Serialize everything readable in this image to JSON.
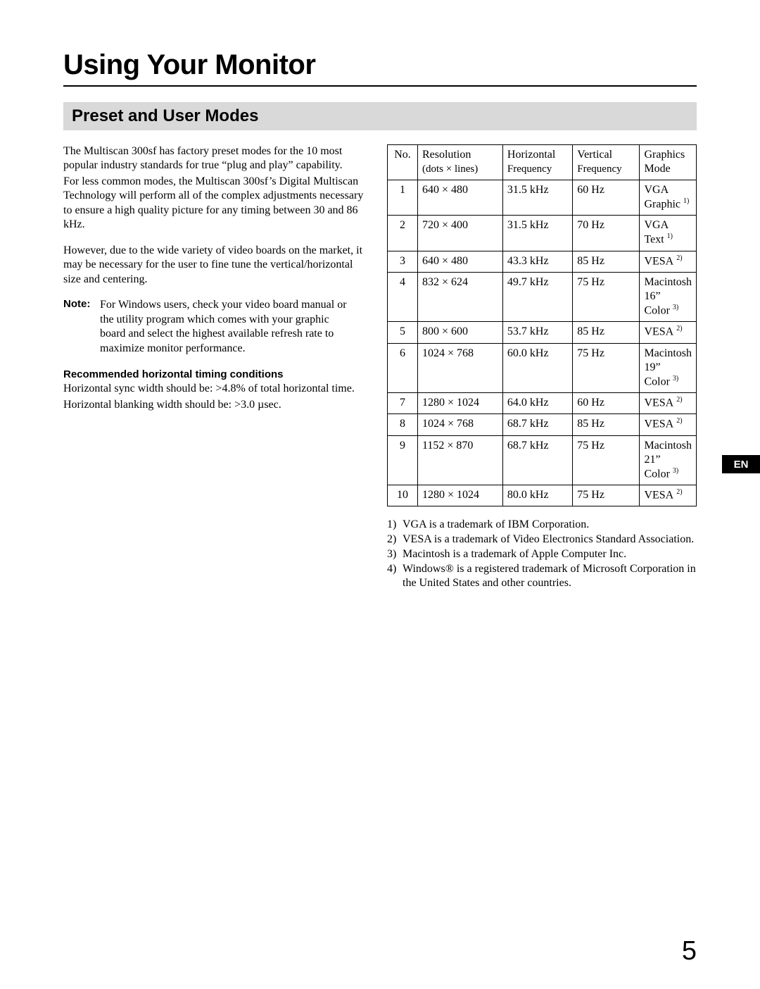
{
  "page": {
    "title": "Using Your Monitor",
    "section_title": "Preset and User Modes",
    "en_tab": "EN",
    "page_number": "5"
  },
  "left": {
    "p1": "The Multiscan 300sf has factory preset modes for the 10 most popular industry standards for true “plug and play” capability.",
    "p2": "For less common modes, the Multiscan 300sf’s Digital Multiscan Technology will perform all of the complex adjustments necessary to ensure a high quality picture for any timing between 30 and 86 kHz.",
    "p3": "However, due to the wide variety of video boards on the market, it may be necessary for the user to fine tune the vertical/horizontal size and centering.",
    "note_lead": "Note:",
    "note_body": "For Windows users, check your video board manual or the utility program which comes with your graphic board and select the highest available refresh rate to maximize monitor performance.",
    "subhead": "Recommended horizontal timing conditions",
    "p4": "Horizontal sync width should be: >4.8% of total horizontal time.",
    "p5": "Horizontal blanking width should be: >3.0 µsec."
  },
  "table": {
    "headers": {
      "no": "No.",
      "res_top": "Resolution",
      "res_sub": "(dots × lines)",
      "hf_top": "Horizontal",
      "hf_sub": "Frequency",
      "vf_top": "Vertical",
      "vf_sub": "Frequency",
      "mode": "Graphics Mode"
    },
    "rows": [
      {
        "no": "1",
        "res": "640 × 480",
        "hf": "31.5 kHz",
        "vf": "60 Hz",
        "mode": "VGA Graphic",
        "sup": "1)"
      },
      {
        "no": "2",
        "res": "720 × 400",
        "hf": "31.5 kHz",
        "vf": "70 Hz",
        "mode": "VGA Text",
        "sup": "1)"
      },
      {
        "no": "3",
        "res": "640 × 480",
        "hf": "43.3 kHz",
        "vf": "85 Hz",
        "mode": "VESA",
        "sup": "2)"
      },
      {
        "no": "4",
        "res": "832 × 624",
        "hf": "49.7 kHz",
        "vf": "75 Hz",
        "mode": "Macintosh\n16” Color",
        "sup": "3)"
      },
      {
        "no": "5",
        "res": "800 × 600",
        "hf": "53.7 kHz",
        "vf": "85 Hz",
        "mode": "VESA",
        "sup": "2)"
      },
      {
        "no": "6",
        "res": "1024 × 768",
        "hf": "60.0 kHz",
        "vf": "75 Hz",
        "mode": "Macintosh\n19” Color",
        "sup": "3)"
      },
      {
        "no": "7",
        "res": "1280 × 1024",
        "hf": "64.0 kHz",
        "vf": "60 Hz",
        "mode": "VESA",
        "sup": "2)"
      },
      {
        "no": "8",
        "res": "1024 × 768",
        "hf": "68.7 kHz",
        "vf": "85 Hz",
        "mode": "VESA",
        "sup": "2)"
      },
      {
        "no": "9",
        "res": "1152 × 870",
        "hf": "68.7 kHz",
        "vf": "75 Hz",
        "mode": "Macintosh\n21” Color",
        "sup": "3)"
      },
      {
        "no": "10",
        "res": "1280 × 1024",
        "hf": "80.0 kHz",
        "vf": "75 Hz",
        "mode": "VESA",
        "sup": "2)"
      }
    ]
  },
  "footnotes": {
    "f1_num": "1)",
    "f1": "VGA is a trademark of IBM Corporation.",
    "f2_num": "2)",
    "f2": "VESA is a trademark of Video Electronics Standard Association.",
    "f3_num": "3)",
    "f3": "Macintosh is a trademark of Apple Computer Inc.",
    "f4_num": "4)",
    "f4": "Windows® is a registered trademark of Microsoft Corporation in the United States and other countries."
  }
}
